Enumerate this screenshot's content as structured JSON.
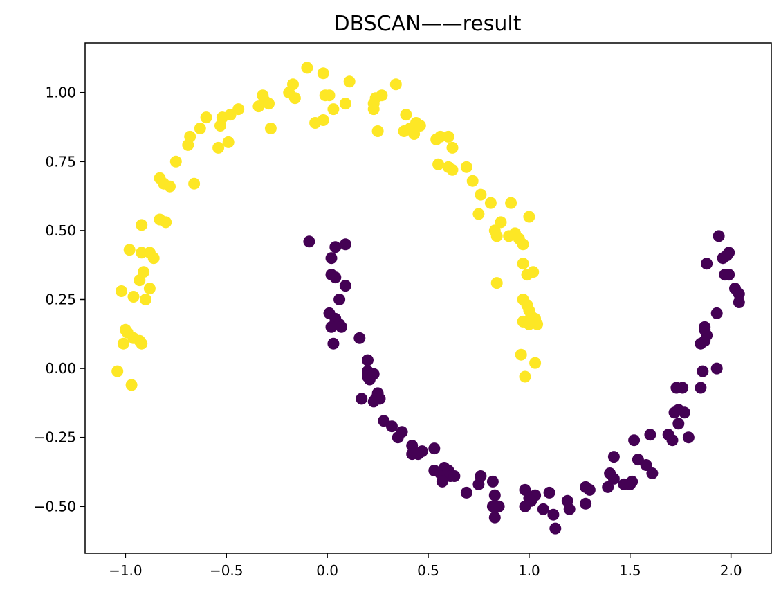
{
  "chart_data": {
    "type": "scatter",
    "title": "DBSCAN——result",
    "xlabel": "",
    "ylabel": "",
    "xlim": [
      -1.2,
      2.2
    ],
    "ylim": [
      -0.67,
      1.18
    ],
    "grid": false,
    "x_ticks": [
      -1.0,
      -0.5,
      0.0,
      0.5,
      1.0,
      1.5,
      2.0
    ],
    "x_tick_labels": [
      "−1.0",
      "−0.5",
      "0.0",
      "0.5",
      "1.0",
      "1.5",
      "2.0"
    ],
    "y_ticks": [
      -0.5,
      -0.25,
      0.0,
      0.25,
      0.5,
      0.75,
      1.0
    ],
    "y_tick_labels": [
      "−0.50",
      "−0.25",
      "0.00",
      "0.25",
      "0.50",
      "0.75",
      "1.00"
    ],
    "series": [
      {
        "color": "#fde725",
        "points": [
          [
            -1.04,
            -0.01
          ],
          [
            -0.97,
            -0.06
          ],
          [
            -1.01,
            0.09
          ],
          [
            -1.0,
            0.14
          ],
          [
            -0.99,
            0.13
          ],
          [
            -0.96,
            0.11
          ],
          [
            -0.93,
            0.1
          ],
          [
            -0.92,
            0.09
          ],
          [
            -0.96,
            0.26
          ],
          [
            -1.02,
            0.28
          ],
          [
            -0.93,
            0.32
          ],
          [
            -0.88,
            0.29
          ],
          [
            -0.9,
            0.25
          ],
          [
            -0.91,
            0.35
          ],
          [
            -0.92,
            0.42
          ],
          [
            -0.88,
            0.42
          ],
          [
            -0.86,
            0.4
          ],
          [
            -0.98,
            0.43
          ],
          [
            -0.92,
            0.52
          ],
          [
            -0.83,
            0.54
          ],
          [
            -0.8,
            0.53
          ],
          [
            -0.83,
            0.69
          ],
          [
            -0.81,
            0.67
          ],
          [
            -0.78,
            0.66
          ],
          [
            -0.75,
            0.75
          ],
          [
            -0.66,
            0.67
          ],
          [
            -0.69,
            0.81
          ],
          [
            -0.68,
            0.84
          ],
          [
            -0.63,
            0.87
          ],
          [
            -0.6,
            0.91
          ],
          [
            -0.54,
            0.8
          ],
          [
            -0.53,
            0.88
          ],
          [
            -0.52,
            0.91
          ],
          [
            -0.49,
            0.82
          ],
          [
            -0.48,
            0.92
          ],
          [
            -0.44,
            0.94
          ],
          [
            -0.34,
            0.95
          ],
          [
            -0.32,
            0.99
          ],
          [
            -0.31,
            0.97
          ],
          [
            -0.29,
            0.96
          ],
          [
            -0.28,
            0.87
          ],
          [
            -0.19,
            1.0
          ],
          [
            -0.17,
            1.03
          ],
          [
            -0.16,
            0.98
          ],
          [
            -0.1,
            1.09
          ],
          [
            -0.06,
            0.89
          ],
          [
            -0.02,
            0.9
          ],
          [
            -0.02,
            1.07
          ],
          [
            -0.01,
            0.99
          ],
          [
            0.01,
            0.99
          ],
          [
            0.03,
            0.94
          ],
          [
            0.09,
            0.96
          ],
          [
            0.11,
            1.04
          ],
          [
            0.23,
            0.96
          ],
          [
            0.23,
            0.94
          ],
          [
            0.24,
            0.98
          ],
          [
            0.25,
            0.86
          ],
          [
            0.27,
            0.99
          ],
          [
            0.34,
            1.03
          ],
          [
            0.39,
            0.92
          ],
          [
            0.38,
            0.86
          ],
          [
            0.41,
            0.87
          ],
          [
            0.43,
            0.85
          ],
          [
            0.44,
            0.89
          ],
          [
            0.46,
            0.88
          ],
          [
            0.54,
            0.83
          ],
          [
            0.56,
            0.84
          ],
          [
            0.6,
            0.84
          ],
          [
            0.62,
            0.8
          ],
          [
            0.55,
            0.74
          ],
          [
            0.6,
            0.73
          ],
          [
            0.62,
            0.72
          ],
          [
            0.69,
            0.73
          ],
          [
            0.72,
            0.68
          ],
          [
            0.76,
            0.63
          ],
          [
            0.75,
            0.56
          ],
          [
            0.81,
            0.6
          ],
          [
            0.83,
            0.5
          ],
          [
            0.86,
            0.53
          ],
          [
            0.84,
            0.48
          ],
          [
            0.91,
            0.6
          ],
          [
            0.9,
            0.48
          ],
          [
            0.93,
            0.49
          ],
          [
            0.95,
            0.47
          ],
          [
            0.97,
            0.45
          ],
          [
            1.0,
            0.55
          ],
          [
            0.97,
            0.38
          ],
          [
            0.99,
            0.34
          ],
          [
            1.02,
            0.35
          ],
          [
            0.84,
            0.31
          ],
          [
            0.97,
            0.25
          ],
          [
            0.99,
            0.23
          ],
          [
            1.0,
            0.21
          ],
          [
            1.01,
            0.19
          ],
          [
            0.97,
            0.17
          ],
          [
            1.03,
            0.18
          ],
          [
            1.04,
            0.16
          ],
          [
            1.0,
            0.16
          ],
          [
            0.96,
            0.05
          ],
          [
            1.03,
            0.02
          ],
          [
            0.98,
            -0.03
          ]
        ]
      },
      {
        "color": "#440154",
        "points": [
          [
            -0.09,
            0.46
          ],
          [
            0.04,
            0.44
          ],
          [
            0.09,
            0.45
          ],
          [
            0.02,
            0.4
          ],
          [
            0.02,
            0.34
          ],
          [
            0.04,
            0.33
          ],
          [
            0.09,
            0.3
          ],
          [
            0.06,
            0.25
          ],
          [
            0.01,
            0.2
          ],
          [
            0.04,
            0.18
          ],
          [
            0.06,
            0.16
          ],
          [
            0.02,
            0.15
          ],
          [
            0.07,
            0.15
          ],
          [
            0.03,
            0.09
          ],
          [
            0.16,
            0.11
          ],
          [
            0.2,
            0.03
          ],
          [
            0.2,
            -0.01
          ],
          [
            0.2,
            -0.03
          ],
          [
            0.21,
            -0.04
          ],
          [
            0.23,
            -0.02
          ],
          [
            0.17,
            -0.11
          ],
          [
            0.25,
            -0.09
          ],
          [
            0.24,
            -0.11
          ],
          [
            0.26,
            -0.11
          ],
          [
            0.23,
            -0.12
          ],
          [
            0.28,
            -0.19
          ],
          [
            0.32,
            -0.21
          ],
          [
            0.35,
            -0.25
          ],
          [
            0.37,
            -0.23
          ],
          [
            0.42,
            -0.28
          ],
          [
            0.42,
            -0.31
          ],
          [
            0.45,
            -0.31
          ],
          [
            0.47,
            -0.3
          ],
          [
            0.53,
            -0.29
          ],
          [
            0.53,
            -0.37
          ],
          [
            0.56,
            -0.38
          ],
          [
            0.58,
            -0.36
          ],
          [
            0.58,
            -0.39
          ],
          [
            0.6,
            -0.37
          ],
          [
            0.61,
            -0.39
          ],
          [
            0.57,
            -0.41
          ],
          [
            0.63,
            -0.39
          ],
          [
            0.69,
            -0.45
          ],
          [
            0.75,
            -0.42
          ],
          [
            0.76,
            -0.39
          ],
          [
            0.82,
            -0.41
          ],
          [
            0.83,
            -0.46
          ],
          [
            0.82,
            -0.5
          ],
          [
            0.84,
            -0.5
          ],
          [
            0.83,
            -0.54
          ],
          [
            0.85,
            -0.5
          ],
          [
            0.98,
            -0.44
          ],
          [
            1.0,
            -0.47
          ],
          [
            1.03,
            -0.46
          ],
          [
            0.98,
            -0.5
          ],
          [
            1.01,
            -0.48
          ],
          [
            1.07,
            -0.51
          ],
          [
            1.1,
            -0.45
          ],
          [
            1.12,
            -0.53
          ],
          [
            1.13,
            -0.58
          ],
          [
            1.19,
            -0.48
          ],
          [
            1.2,
            -0.51
          ],
          [
            1.28,
            -0.49
          ],
          [
            1.28,
            -0.43
          ],
          [
            1.3,
            -0.44
          ],
          [
            1.39,
            -0.43
          ],
          [
            1.4,
            -0.38
          ],
          [
            1.42,
            -0.32
          ],
          [
            1.42,
            -0.4
          ],
          [
            1.47,
            -0.42
          ],
          [
            1.5,
            -0.42
          ],
          [
            1.51,
            -0.41
          ],
          [
            1.52,
            -0.26
          ],
          [
            1.54,
            -0.33
          ],
          [
            1.58,
            -0.35
          ],
          [
            1.6,
            -0.24
          ],
          [
            1.61,
            -0.38
          ],
          [
            1.69,
            -0.24
          ],
          [
            1.71,
            -0.26
          ],
          [
            1.72,
            -0.16
          ],
          [
            1.73,
            -0.07
          ],
          [
            1.74,
            -0.15
          ],
          [
            1.74,
            -0.2
          ],
          [
            1.76,
            -0.07
          ],
          [
            1.77,
            -0.16
          ],
          [
            1.79,
            -0.25
          ],
          [
            1.85,
            -0.07
          ],
          [
            1.86,
            -0.01
          ],
          [
            1.85,
            0.09
          ],
          [
            1.87,
            0.1
          ],
          [
            1.88,
            0.12
          ],
          [
            1.87,
            0.15
          ],
          [
            1.87,
            0.14
          ],
          [
            1.93,
            -0.0
          ],
          [
            1.93,
            0.2
          ],
          [
            1.88,
            0.38
          ],
          [
            1.94,
            0.48
          ],
          [
            1.96,
            0.4
          ],
          [
            1.98,
            0.41
          ],
          [
            1.99,
            0.42
          ],
          [
            1.97,
            0.34
          ],
          [
            1.99,
            0.34
          ],
          [
            2.02,
            0.29
          ],
          [
            2.04,
            0.27
          ],
          [
            2.04,
            0.24
          ]
        ]
      }
    ]
  }
}
